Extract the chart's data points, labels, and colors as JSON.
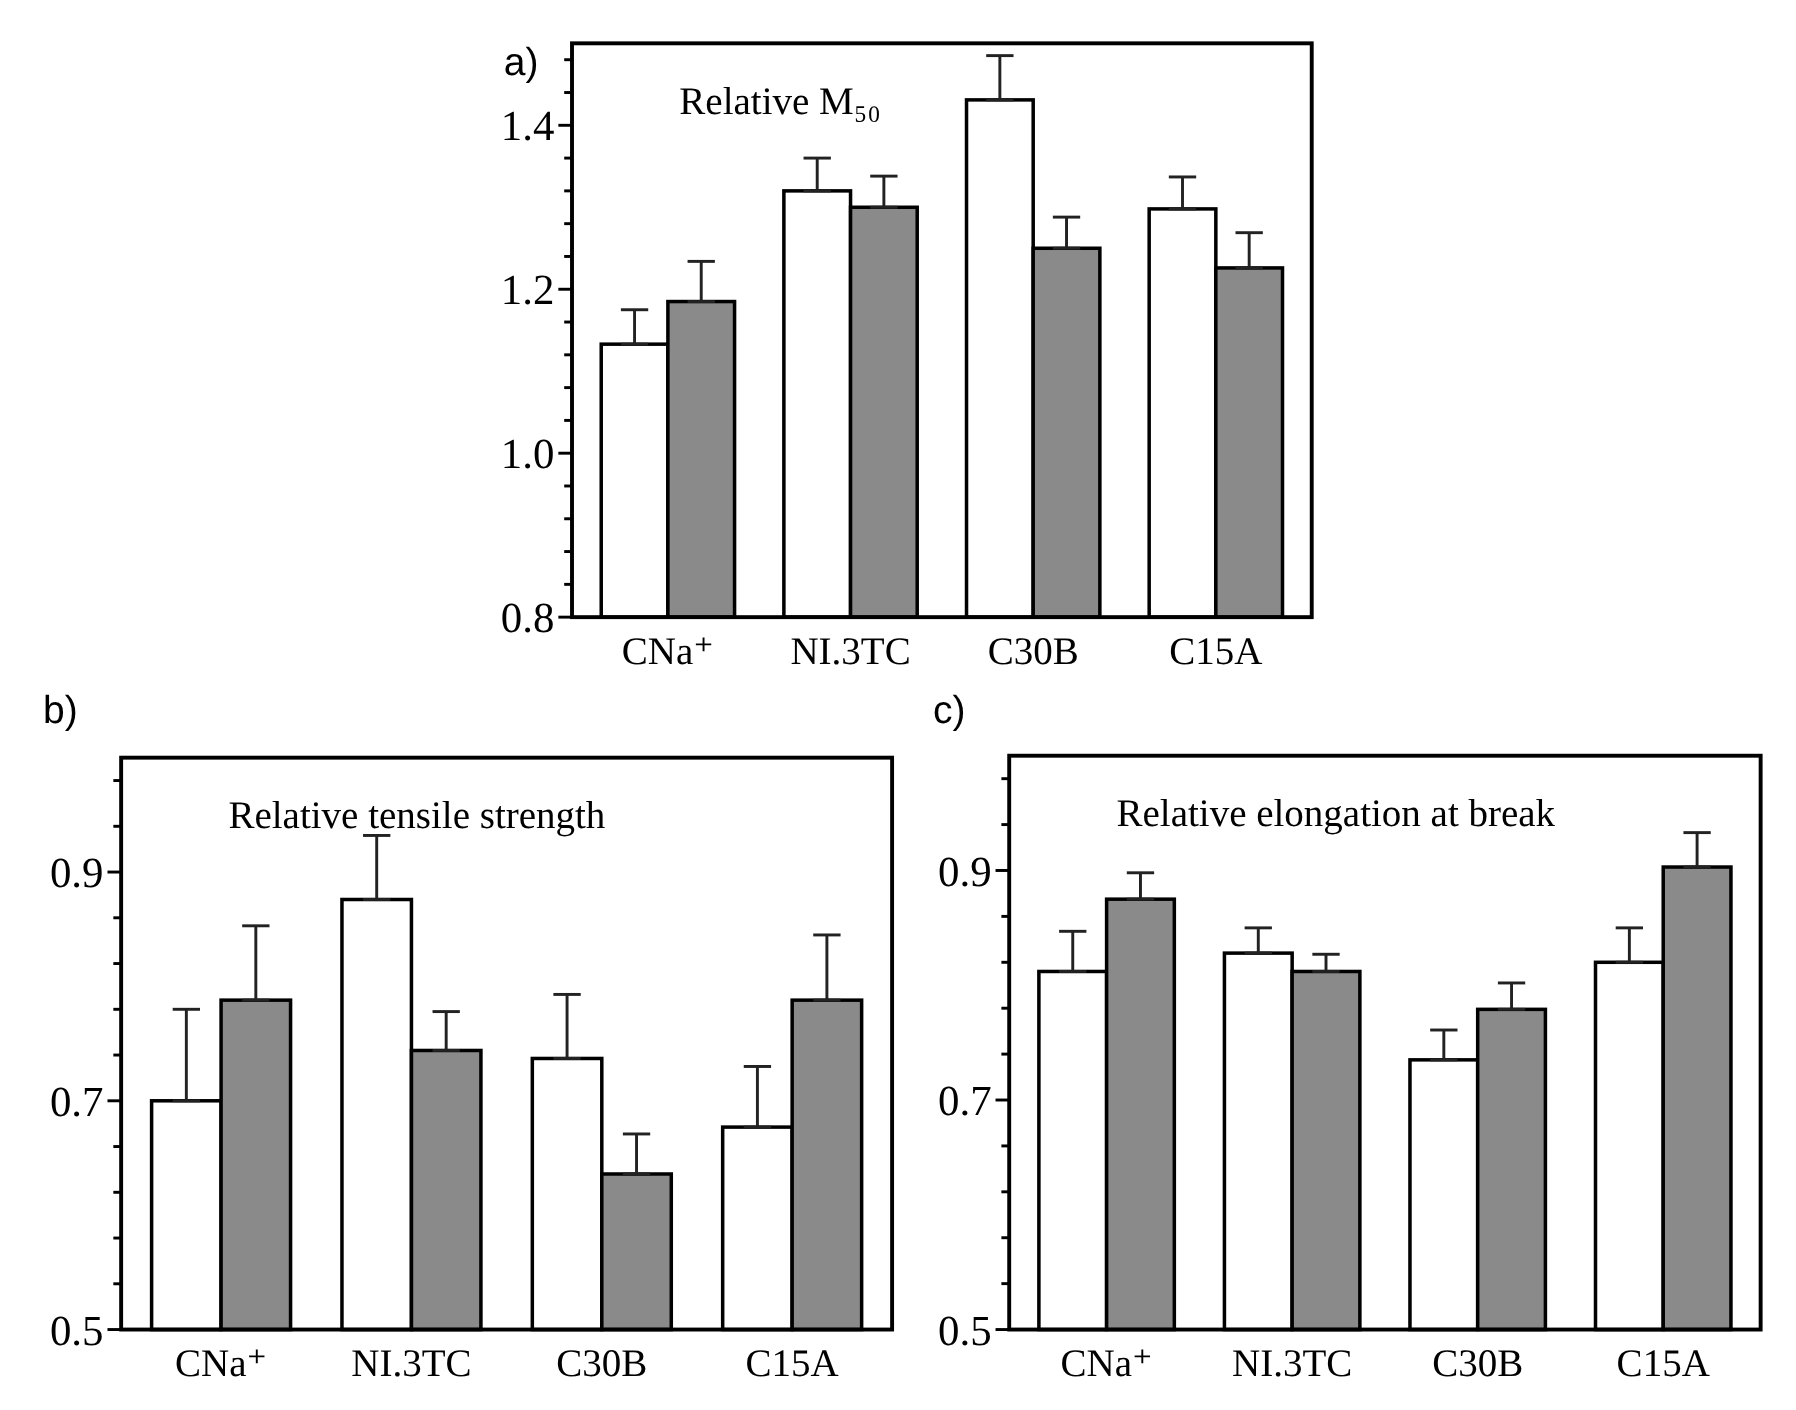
{
  "chart_data": [
    {
      "type": "bar",
      "title": "Relative M₅₀",
      "annotations": [
        "a)"
      ],
      "categories": [
        "CNa⁺",
        "NI.3TC",
        "C30B",
        "C15A"
      ],
      "ylim": [
        0.8,
        1.5
      ],
      "yticks": [
        0.8,
        {
          "value": 0.84,
          "label": null
        },
        {
          "value": 0.88,
          "label": null
        },
        {
          "value": 0.92,
          "label": null
        },
        {
          "value": 0.96,
          "label": null
        },
        {
          "value": 1.0,
          "label": "1.0"
        },
        {
          "value": 1.04,
          "label": null
        },
        {
          "value": 1.08,
          "label": null
        },
        {
          "value": 1.12,
          "label": null
        },
        {
          "value": 1.16,
          "label": null
        },
        1.2,
        {
          "value": 1.24,
          "label": null
        },
        {
          "value": 1.28,
          "label": null
        },
        {
          "value": 1.32,
          "label": null
        },
        {
          "value": 1.36,
          "label": null
        },
        1.4,
        {
          "value": 1.44,
          "label": null
        },
        {
          "value": 1.48,
          "label": null
        }
      ],
      "series": [
        {
          "color": "#ffffff",
          "values": [
            1.133,
            1.32,
            1.431,
            1.298
          ],
          "errors": [
            [
              1.133,
              1.175
            ],
            [
              1.32,
              1.36
            ],
            [
              1.431,
              1.485
            ],
            [
              1.298,
              1.337
            ]
          ]
        },
        {
          "color": "#8a8a8a",
          "values": [
            1.185,
            1.3,
            1.25,
            1.226
          ],
          "errors": [
            [
              1.185,
              1.234
            ],
            [
              1.3,
              1.338
            ],
            [
              1.25,
              1.288
            ],
            [
              1.226,
              1.269
            ]
          ]
        }
      ]
    },
    {
      "type": "bar",
      "title": "Relative tensile strength",
      "annotations": [
        "b)"
      ],
      "categories": [
        "CNa⁺",
        "NI.3TC",
        "C30B",
        "C15A"
      ],
      "ylim": [
        0.5,
        1.0
      ],
      "yticks": [
        0.5,
        {
          "value": 0.54,
          "label": null
        },
        {
          "value": 0.58,
          "label": null
        },
        {
          "value": 0.62,
          "label": null
        },
        {
          "value": 0.66,
          "label": null
        },
        0.7,
        {
          "value": 0.74,
          "label": null
        },
        {
          "value": 0.78,
          "label": null
        },
        {
          "value": 0.82,
          "label": null
        },
        {
          "value": 0.86,
          "label": null
        },
        0.9,
        {
          "value": 0.94,
          "label": null
        },
        {
          "value": 0.98,
          "label": null
        }
      ],
      "series": [
        {
          "color": "#ffffff",
          "values": [
            0.7,
            0.876,
            0.737,
            0.677
          ],
          "errors": [
            [
              0.7,
              0.78
            ],
            [
              0.876,
              0.932
            ],
            [
              0.737,
              0.793
            ],
            [
              0.677,
              0.73
            ]
          ]
        },
        {
          "color": "#8a8a8a",
          "values": [
            0.788,
            0.744,
            0.636,
            0.788
          ],
          "errors": [
            [
              0.788,
              0.853
            ],
            [
              0.744,
              0.778
            ],
            [
              0.636,
              0.671
            ],
            [
              0.788,
              0.845
            ]
          ]
        }
      ]
    },
    {
      "type": "bar",
      "title": "Relative elongation at break",
      "annotations": [
        "c)"
      ],
      "categories": [
        "CNa⁺",
        "NI.3TC",
        "C30B",
        "C15A"
      ],
      "ylim": [
        0.5,
        1.0
      ],
      "yticks": [
        0.5,
        {
          "value": 0.54,
          "label": null
        },
        {
          "value": 0.58,
          "label": null
        },
        {
          "value": 0.62,
          "label": null
        },
        {
          "value": 0.66,
          "label": null
        },
        0.7,
        {
          "value": 0.74,
          "label": null
        },
        {
          "value": 0.78,
          "label": null
        },
        {
          "value": 0.82,
          "label": null
        },
        {
          "value": 0.86,
          "label": null
        },
        0.9,
        {
          "value": 0.94,
          "label": null
        },
        {
          "value": 0.98,
          "label": null
        }
      ],
      "series": [
        {
          "color": "#ffffff",
          "values": [
            0.812,
            0.828,
            0.735,
            0.82
          ],
          "errors": [
            [
              0.812,
              0.847
            ],
            [
              0.828,
              0.85
            ],
            [
              0.735,
              0.761
            ],
            [
              0.82,
              0.85
            ]
          ]
        },
        {
          "color": "#8a8a8a",
          "values": [
            0.875,
            0.812,
            0.779,
            0.903
          ],
          "errors": [
            [
              0.875,
              0.898
            ],
            [
              0.812,
              0.827
            ],
            [
              0.779,
              0.802
            ],
            [
              0.903,
              0.933
            ]
          ]
        }
      ]
    }
  ]
}
